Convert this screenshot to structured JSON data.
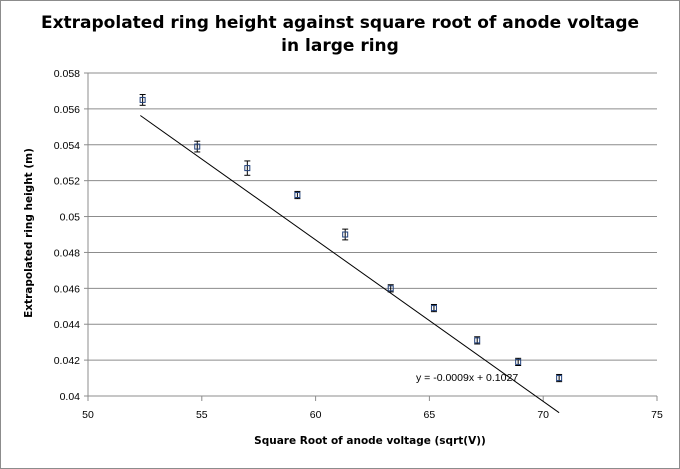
{
  "chart_data": {
    "type": "scatter",
    "title": "Extrapolated ring height against square root of anode voltage in large ring",
    "xlabel": "Square Root of anode voltage (sqrt(V))",
    "ylabel": "Extrapolated ring height (m)",
    "xlim": [
      50,
      75
    ],
    "ylim": [
      0.04,
      0.058
    ],
    "xticks": [
      "50",
      "55",
      "60",
      "65",
      "70",
      "75"
    ],
    "yticks": [
      "0.04",
      "0.042",
      "0.044",
      "0.046",
      "0.048",
      "0.05",
      "0.052",
      "0.054",
      "0.056",
      "0.058"
    ],
    "grid": "horizontal",
    "series": [
      {
        "points": [
          {
            "x": 52.4,
            "y": 0.0565,
            "err": 0.0003
          },
          {
            "x": 54.8,
            "y": 0.0539,
            "err": 0.0003
          },
          {
            "x": 57.0,
            "y": 0.0527,
            "err": 0.0004
          },
          {
            "x": 59.2,
            "y": 0.0512,
            "err": 0.0002
          },
          {
            "x": 61.3,
            "y": 0.049,
            "err": 0.0003
          },
          {
            "x": 63.3,
            "y": 0.046,
            "err": 0.0002
          },
          {
            "x": 65.2,
            "y": 0.0449,
            "err": 0.0002
          },
          {
            "x": 67.1,
            "y": 0.0431,
            "err": 0.0002
          },
          {
            "x": 68.9,
            "y": 0.0419,
            "err": 0.0002
          },
          {
            "x": 70.7,
            "y": 0.041,
            "err": 0.0002
          }
        ]
      }
    ],
    "trendline": {
      "slope": -0.0009,
      "intercept": 0.1027,
      "x_range": [
        52.3,
        70.7
      ],
      "label": "y = -0.0009x + 0.1027"
    }
  }
}
